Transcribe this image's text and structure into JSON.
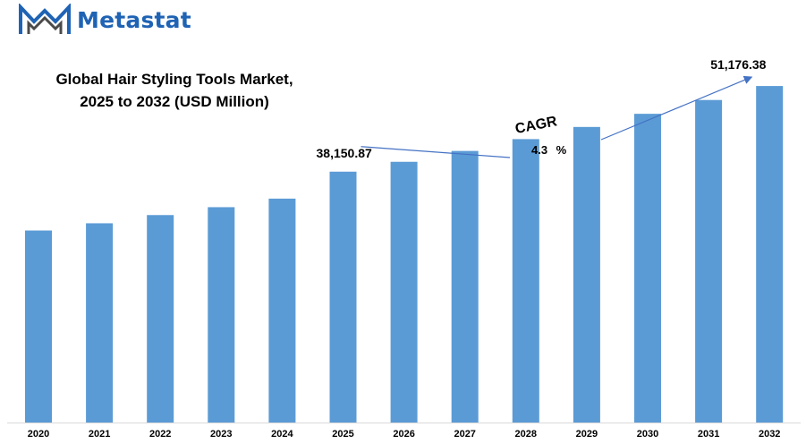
{
  "brand": {
    "name": "Metastat",
    "logo_icon": "metastat-m-logo",
    "color": "#1f63b4"
  },
  "chart_data": {
    "type": "bar",
    "title": [
      "Global Hair Styling Tools Market,",
      "2025 to 2032 (USD Million)"
    ],
    "categories": [
      "2020",
      "2021",
      "2022",
      "2023",
      "2024",
      "2025",
      "2026",
      "2027",
      "2028",
      "2029",
      "2030",
      "2031",
      "2032"
    ],
    "series": [
      {
        "values": [
          29200,
          30300,
          31550,
          32750,
          34050,
          38150.87,
          39650,
          41300,
          43100,
          44950,
          46950,
          49050,
          51176.38
        ],
        "color": "#5b9bd5"
      }
    ],
    "ylim": [
      0,
      55000
    ],
    "xlabel": "",
    "ylabel": "",
    "grid": false,
    "data_labels": [
      {
        "category": "2025",
        "text": "38,150.87"
      },
      {
        "category": "2032",
        "text": "51,176.38"
      }
    ],
    "annotation": {
      "label": "CAGR",
      "value": "4.3 %",
      "from": "2025",
      "to": "2032"
    }
  }
}
